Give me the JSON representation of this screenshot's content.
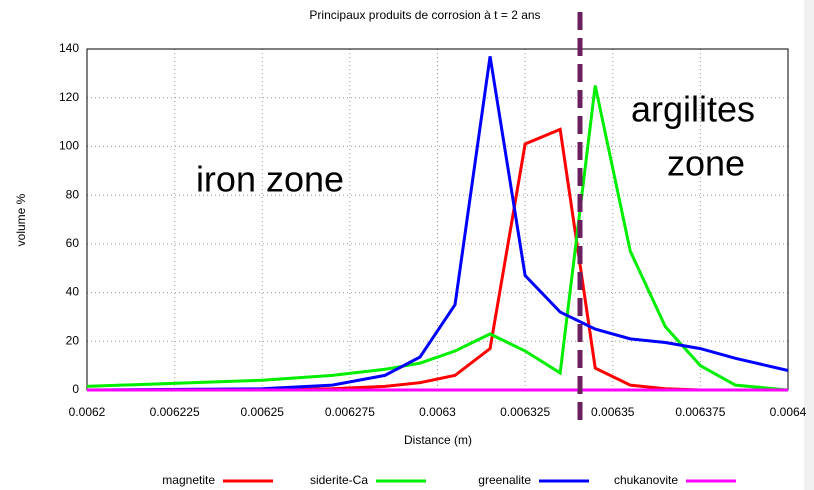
{
  "chart_data": {
    "type": "line",
    "title": "Principaux produits de corrosion à t = 2 ans",
    "x_label": "Distance (m)",
    "y_label": "volume %",
    "annotations": [
      "iron zone",
      "argilites",
      "zone"
    ],
    "x": [
      0.0062,
      0.00625,
      0.00627,
      0.006285,
      0.006295,
      0.006305,
      0.006315,
      0.006325,
      0.006335,
      0.006345,
      0.006355,
      0.006365,
      0.006375,
      0.006385,
      0.0064
    ],
    "series": [
      {
        "name": "magnetite",
        "color": "#ff0000",
        "values": [
          0,
          0,
          0.5,
          1.5,
          3,
          6,
          17,
          101,
          107,
          9,
          2,
          0.5,
          0,
          0,
          0
        ]
      },
      {
        "name": "siderite-Ca",
        "color": "#00ee00",
        "values": [
          1.5,
          4,
          6,
          8.5,
          11,
          16,
          23,
          16,
          7,
          125,
          57,
          26,
          10,
          2,
          0
        ]
      },
      {
        "name": "greenalite",
        "color": "#0000ff",
        "values": [
          0,
          0.5,
          2,
          6,
          13.5,
          35,
          137,
          47,
          32,
          25,
          21,
          19.5,
          17,
          13,
          8
        ]
      },
      {
        "name": "chukanovite",
        "color": "#ff00ff",
        "values": [
          0,
          0,
          0,
          0,
          0,
          0,
          0,
          0,
          0,
          0,
          0,
          0,
          0,
          0,
          0
        ]
      }
    ],
    "xlim": [
      0.0062,
      0.0064
    ],
    "xticks": [
      0.0062,
      0.006225,
      0.00625,
      0.006275,
      0.0063,
      0.006325,
      0.00635,
      0.006375,
      0.0064
    ],
    "ylim": [
      0,
      140
    ],
    "yticks": [
      0,
      20,
      40,
      60,
      80,
      100,
      120,
      140
    ],
    "grid": true
  }
}
